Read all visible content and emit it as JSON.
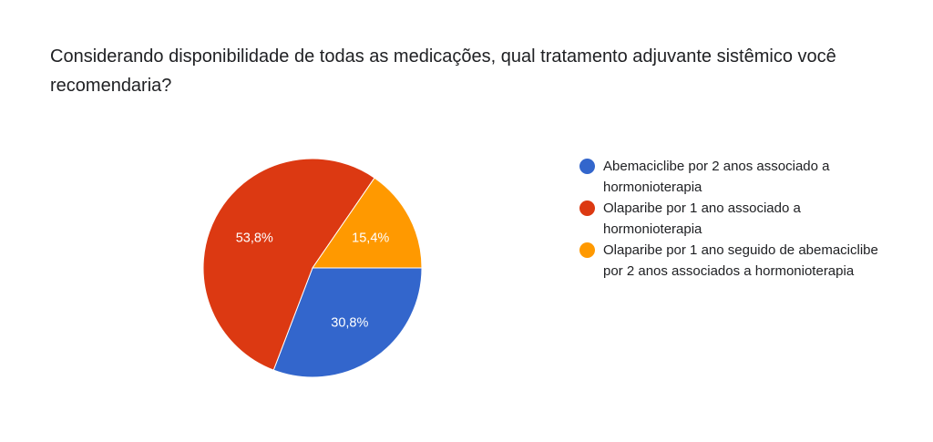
{
  "question": "Considerando disponibilidade de todas as medicações, qual tratamento adjuvante sistêmico você recomendaria?",
  "chart_data": {
    "type": "pie",
    "title": "Considerando disponibilidade de todas as medicações, qual tratamento adjuvante sistêmico você recomendaria?",
    "legend_position": "right",
    "slices": [
      {
        "label": "Abemaciclibe por 2 anos associado a hormonioterapia",
        "value": 30.8,
        "value_label": "30,8%",
        "color": "#3366cc"
      },
      {
        "label": "Olaparibe por 1 ano associado a hormonioterapia",
        "value": 53.8,
        "value_label": "53,8%",
        "color": "#dc3912"
      },
      {
        "label": "Olaparibe por 1 ano seguido de abemaciclibe por 2 anos associados a hormonioterapia",
        "value": 15.4,
        "value_label": "15,4%",
        "color": "#ff9900"
      }
    ]
  },
  "legend": [
    {
      "text": "Abemaciclibe por 2 anos associado a hormonioterapia",
      "color": "#3366cc"
    },
    {
      "text": "Olaparibe por 1 ano associado a hormonioterapia",
      "color": "#dc3912"
    },
    {
      "text": "Olaparibe por 1 ano seguido de abemaciclibe por 2 anos associados a hormonioterapia",
      "color": "#ff9900"
    }
  ]
}
